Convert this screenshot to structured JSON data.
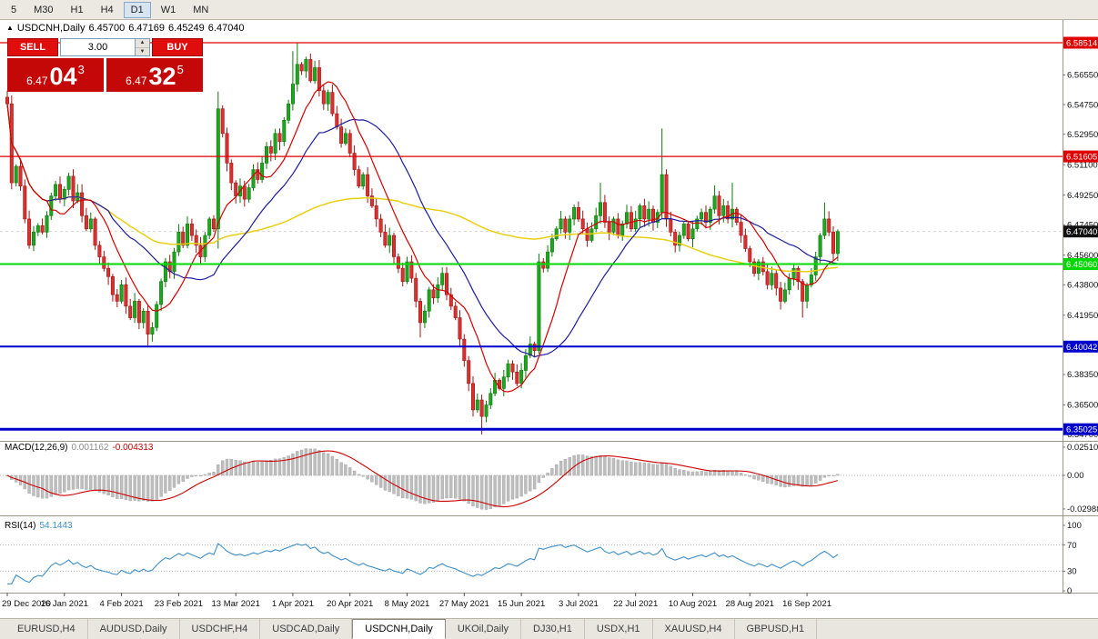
{
  "toolbar": {
    "timeframes": [
      "5",
      "M30",
      "H1",
      "H4",
      "D1",
      "W1",
      "MN"
    ],
    "active": "D1"
  },
  "icons": {
    "collapse_arrow": "▲",
    "spinner_up": "▲",
    "spinner_down": "▼"
  },
  "chart": {
    "title": {
      "symbol": "USDCNH,Daily",
      "open": "6.45700",
      "high": "6.47169",
      "low": "6.45249",
      "close": "6.47040"
    },
    "trade_panel": {
      "sell_label": "SELL",
      "buy_label": "BUY",
      "volume": "3.00",
      "sell_price": {
        "prefix": "6.47",
        "big": "04",
        "sup": "3"
      },
      "buy_price": {
        "prefix": "6.47",
        "big": "32",
        "sup": "5"
      }
    }
  },
  "price_axis": {
    "ticks": [
      "6.56550",
      "6.54750",
      "6.52950",
      "6.51100",
      "6.49250",
      "6.47450",
      "6.45600",
      "6.43800",
      "6.41950",
      "6.38350",
      "6.36500",
      "6.34700"
    ],
    "current": {
      "label": "6.47040",
      "price": 6.4704,
      "color": "#111111"
    }
  },
  "levels": [
    {
      "price": 6.58514,
      "label": "6.58514",
      "color": "#e00000",
      "width": 1.3
    },
    {
      "price": 6.51605,
      "label": "6.51605",
      "color": "#e00000",
      "width": 1.3
    },
    {
      "price": 6.4506,
      "label": "6.45060",
      "color": "#00d800",
      "width": 2
    },
    {
      "price": 6.40042,
      "label": "6.40042",
      "color": "#0000cc",
      "width": 2
    },
    {
      "price": 6.35025,
      "label": "6.35025",
      "color": "#0000cc",
      "width": 3
    }
  ],
  "chart_data": {
    "type": "candlestick",
    "symbol": "USDCNH",
    "timeframe": "Daily",
    "ohlc_current": {
      "open": 6.457,
      "high": 6.47169,
      "low": 6.45249,
      "close": 6.4704
    },
    "x_labels": [
      "29 Dec 2020",
      "16 Jan 2021",
      "4 Feb 2021",
      "23 Feb 2021",
      "13 Mar 2021",
      "1 Apr 2021",
      "20 Apr 2021",
      "8 May 2021",
      "27 May 2021",
      "15 Jun 2021",
      "3 Jul 2021",
      "22 Jul 2021",
      "10 Aug 2021",
      "28 Aug 2021",
      "16 Sep 2021"
    ],
    "label_every": 13,
    "first_open": 6.552,
    "closes": [
      6.548,
      6.5,
      6.51,
      6.498,
      6.478,
      6.462,
      6.47,
      6.474,
      6.47,
      6.48,
      6.492,
      6.499,
      6.49,
      6.496,
      6.504,
      6.489,
      6.494,
      6.48,
      6.472,
      6.478,
      6.462,
      6.455,
      6.448,
      6.443,
      6.432,
      6.428,
      6.438,
      6.425,
      6.418,
      6.428,
      6.415,
      6.422,
      6.408,
      6.412,
      6.426,
      6.44,
      6.452,
      6.446,
      6.458,
      6.47,
      6.462,
      6.475,
      6.468,
      6.462,
      6.455,
      6.468,
      6.478,
      6.472,
      6.545,
      6.53,
      6.512,
      6.5,
      6.492,
      6.498,
      6.49,
      6.497,
      6.508,
      6.502,
      6.512,
      6.522,
      6.518,
      6.53,
      6.525,
      6.538,
      6.548,
      6.56,
      6.572,
      6.568,
      6.575,
      6.562,
      6.57,
      6.556,
      6.548,
      6.555,
      6.542,
      6.534,
      6.524,
      6.53,
      6.518,
      6.508,
      6.498,
      6.505,
      6.492,
      6.486,
      6.478,
      6.47,
      6.462,
      6.468,
      6.455,
      6.448,
      6.44,
      6.452,
      6.442,
      6.428,
      6.415,
      6.422,
      6.435,
      6.43,
      6.438,
      6.445,
      6.432,
      6.425,
      6.418,
      6.405,
      6.392,
      6.378,
      6.362,
      6.368,
      6.358,
      6.365,
      6.372,
      6.38,
      6.375,
      6.382,
      6.39,
      6.385,
      6.378,
      6.386,
      6.395,
      6.402,
      6.398,
      6.452,
      6.448,
      6.458,
      6.466,
      6.472,
      6.478,
      6.47,
      6.478,
      6.485,
      6.478,
      6.472,
      6.465,
      6.472,
      6.48,
      6.488,
      6.476,
      6.47,
      6.478,
      6.468,
      6.475,
      6.482,
      6.472,
      6.478,
      6.486,
      6.478,
      6.484,
      6.476,
      6.482,
      6.505,
      6.478,
      6.47,
      6.462,
      6.468,
      6.475,
      6.466,
      6.472,
      6.478,
      6.482,
      6.476,
      6.484,
      6.492,
      6.48,
      6.486,
      6.478,
      6.484,
      6.476,
      6.468,
      6.46,
      6.452,
      6.445,
      6.452,
      6.446,
      6.438,
      6.445,
      6.436,
      6.428,
      6.435,
      6.442,
      6.448,
      6.44,
      6.428,
      6.438,
      6.444,
      6.455,
      6.468,
      6.478,
      6.47,
      6.457,
      6.4704
    ],
    "wick_overrides": {
      "0": {
        "high": 6.556
      },
      "32": {
        "low": 6.401
      },
      "48": {
        "low": 6.46,
        "high": 6.5555
      },
      "65": {
        "high": 6.58
      },
      "66": {
        "high": 6.5851
      },
      "94": {
        "low": 6.406
      },
      "108": {
        "low": 6.347
      },
      "121": {
        "low": 6.396
      },
      "135": {
        "high": 6.5
      },
      "149": {
        "high": 6.533
      },
      "161": {
        "high": 6.4985
      },
      "165": {
        "high": 6.5
      },
      "181": {
        "low": 6.418
      },
      "186": {
        "high": 6.488
      },
      "189": {
        "high": 6.47169,
        "low": 6.45249
      }
    },
    "candle_colors": {
      "up_fill": "#1fa51f",
      "up_stroke": "#0e7a0e",
      "down_fill": "#d93030",
      "down_stroke": "#a01515"
    },
    "moving_averages": [
      {
        "name": "slow",
        "period": 90,
        "color": "#e8cf12",
        "width": 1.5
      },
      {
        "name": "medium",
        "period": 24,
        "color": "#1c1c9e",
        "width": 1.2
      },
      {
        "name": "fast",
        "period": 10,
        "color": "#d40000",
        "width": 1.2
      }
    ]
  },
  "macd_panel": {
    "label": "MACD(12,26,9)",
    "main_value": "0.001162",
    "signal_value": "-0.004313",
    "axis": [
      "0.02510",
      "0.00",
      "-0.02988"
    ],
    "params": {
      "fast": 12,
      "slow": 26,
      "signal": 9
    },
    "histogram_color": "#bdbdbd",
    "signal_color": "#cc0000"
  },
  "rsi_panel": {
    "label": "RSI(14)",
    "value": "54.1443",
    "axis": [
      "100",
      "70",
      "30",
      "0"
    ],
    "guide_levels": [
      70,
      30
    ],
    "period": 14,
    "color": "#3e8fc7"
  },
  "bottom_tabs": {
    "items": [
      "EURUSD,H4",
      "AUDUSD,Daily",
      "USDCHF,H4",
      "USDCAD,Daily",
      "USDCNH,Daily",
      "UKOil,Daily",
      "DJ30,H1",
      "USDX,H1",
      "XAUUSD,H4",
      "GBPUSD,H1"
    ],
    "active": "USDCNH,Daily"
  }
}
